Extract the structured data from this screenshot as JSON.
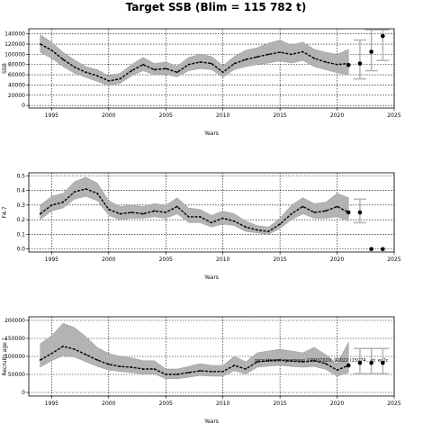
{
  "title": "Target SSB (Blim = 115 782 t)",
  "colors": {
    "band": "#b3b3b3",
    "line": "#000000",
    "whisker": "#b3b3b3",
    "point": "#000000"
  },
  "chart_data": [
    {
      "type": "line",
      "name": "ssb",
      "xlabel": "Years",
      "ylabel": "SSB",
      "xlim": [
        1993,
        2025
      ],
      "ylim": [
        -5000,
        150000
      ],
      "xticks": [
        1995,
        2000,
        2005,
        2010,
        2015,
        2020,
        2025
      ],
      "yticks": [
        0,
        20000,
        40000,
        60000,
        80000,
        100000,
        120000,
        140000
      ],
      "grid": true,
      "series": [
        {
          "x": [
            1994,
            1995,
            1996,
            1997,
            1998,
            1999,
            2000,
            2001,
            2002,
            2003,
            2004,
            2005,
            2006,
            2007,
            2008,
            2009,
            2010,
            2011,
            2012,
            2013,
            2014,
            2015,
            2016,
            2017,
            2018,
            2019,
            2020,
            2021
          ],
          "values": [
            120000,
            108000,
            90000,
            75000,
            65000,
            58000,
            48000,
            52000,
            68000,
            80000,
            70000,
            72000,
            65000,
            80000,
            85000,
            82000,
            65000,
            82000,
            90000,
            95000,
            100000,
            104000,
            100000,
            105000,
            92000,
            85000,
            80000,
            82000
          ],
          "lower": [
            104000,
            92000,
            76000,
            63000,
            55000,
            47000,
            39000,
            43000,
            58000,
            68000,
            60000,
            61000,
            56000,
            68000,
            72000,
            70000,
            55000,
            70000,
            76000,
            80000,
            83000,
            87000,
            83000,
            88000,
            76000,
            70000,
            64000,
            60000
          ],
          "upper": [
            138000,
            124000,
            104000,
            89000,
            76000,
            70000,
            58000,
            63000,
            80000,
            94000,
            82000,
            85000,
            77000,
            94000,
            100000,
            96000,
            78000,
            96000,
            108000,
            113000,
            122000,
            128000,
            118000,
            124000,
            110000,
            104000,
            100000,
            110000
          ]
        }
      ],
      "points": [
        {
          "x": 2021,
          "y": 79000
        },
        {
          "x": 2022,
          "y": 82000,
          "lower": 52000,
          "upper": 128000
        },
        {
          "x": 2023,
          "y": 105000,
          "lower": 68000,
          "upper": 148000
        },
        {
          "x": 2024,
          "y": 136000,
          "lower": 88000,
          "upper": 148000
        }
      ]
    },
    {
      "type": "line",
      "name": "f",
      "xlabel": "Years",
      "ylabel": "F4-7",
      "xlim": [
        1993,
        2025
      ],
      "ylim": [
        -0.02,
        0.52
      ],
      "xticks": [
        1995,
        2000,
        2005,
        2010,
        2015,
        2020,
        2025
      ],
      "yticks": [
        0.0,
        0.1,
        0.2,
        0.3,
        0.4,
        0.5
      ],
      "grid": true,
      "series": [
        {
          "x": [
            1994,
            1995,
            1996,
            1997,
            1998,
            1999,
            2000,
            2001,
            2002,
            2003,
            2004,
            2005,
            2006,
            2007,
            2008,
            2009,
            2010,
            2011,
            2012,
            2013,
            2014,
            2015,
            2016,
            2017,
            2018,
            2019,
            2020,
            2021
          ],
          "values": [
            0.24,
            0.3,
            0.32,
            0.39,
            0.41,
            0.38,
            0.27,
            0.24,
            0.25,
            0.24,
            0.26,
            0.25,
            0.29,
            0.22,
            0.22,
            0.18,
            0.21,
            0.19,
            0.15,
            0.13,
            0.12,
            0.17,
            0.24,
            0.29,
            0.25,
            0.26,
            0.29,
            0.25
          ],
          "lower": [
            0.2,
            0.26,
            0.28,
            0.34,
            0.36,
            0.33,
            0.23,
            0.2,
            0.21,
            0.21,
            0.22,
            0.21,
            0.24,
            0.18,
            0.18,
            0.15,
            0.17,
            0.16,
            0.12,
            0.11,
            0.1,
            0.14,
            0.2,
            0.24,
            0.21,
            0.21,
            0.22,
            0.19
          ],
          "upper": [
            0.3,
            0.36,
            0.38,
            0.46,
            0.49,
            0.45,
            0.33,
            0.29,
            0.3,
            0.29,
            0.31,
            0.3,
            0.35,
            0.28,
            0.27,
            0.23,
            0.26,
            0.24,
            0.19,
            0.16,
            0.15,
            0.21,
            0.3,
            0.35,
            0.31,
            0.32,
            0.38,
            0.35
          ]
        }
      ],
      "points": [
        {
          "x": 2021,
          "y": 0.25
        },
        {
          "x": 2022,
          "y": 0.25,
          "lower": 0.18,
          "upper": 0.34
        },
        {
          "x": 2023,
          "y": 0.0
        },
        {
          "x": 2024,
          "y": 0.0
        }
      ]
    },
    {
      "type": "line",
      "name": "recruits",
      "xlabel": "Years",
      "ylabel": "Recruits age 1",
      "xlim": [
        1993,
        2025
      ],
      "ylim": [
        -10000,
        210000
      ],
      "xticks": [
        1995,
        2000,
        2005,
        2010,
        2015,
        2020,
        2025
      ],
      "yticks": [
        0,
        50000,
        100000,
        150000,
        200000
      ],
      "grid": true,
      "series": [
        {
          "x": [
            1994,
            1995,
            1996,
            1997,
            1998,
            1999,
            2000,
            2001,
            2002,
            2003,
            2004,
            2005,
            2006,
            2007,
            2008,
            2009,
            2010,
            2011,
            2012,
            2013,
            2014,
            2015,
            2016,
            2017,
            2018,
            2019,
            2020,
            2021
          ],
          "values": [
            90000,
            108000,
            128000,
            120000,
            105000,
            90000,
            78000,
            72000,
            70000,
            65000,
            65000,
            50000,
            50000,
            55000,
            60000,
            58000,
            58000,
            75000,
            65000,
            85000,
            88000,
            90000,
            87000,
            85000,
            88000,
            80000,
            62000,
            75000
          ],
          "lower": [
            70000,
            88000,
            102000,
            98000,
            85000,
            72000,
            62000,
            58000,
            55000,
            51000,
            51000,
            38000,
            38000,
            42000,
            47000,
            45000,
            45000,
            60000,
            51000,
            70000,
            73000,
            75000,
            72000,
            70000,
            72000,
            64000,
            45000,
            55000
          ],
          "upper": [
            135000,
            158000,
            192000,
            180000,
            155000,
            125000,
            108000,
            100000,
            96000,
            88000,
            88000,
            65000,
            65000,
            72000,
            80000,
            75000,
            75000,
            100000,
            85000,
            110000,
            115000,
            120000,
            115000,
            110000,
            125000,
            105000,
            80000,
            140000
          ]
        }
      ],
      "points": [
        {
          "x": 2021,
          "y": 75000
        },
        {
          "x": 2022,
          "y": 82000,
          "lower": 52000,
          "upper": 122000
        },
        {
          "x": 2023,
          "y": 82000,
          "lower": 52000,
          "upper": 122000
        },
        {
          "x": 2024,
          "y": 82000,
          "lower": 52000,
          "upper": 122000
        }
      ],
      "annotation": "recruitment: geomean 1990/2020, 90022 (15974 , gt: ec2c"
    }
  ]
}
